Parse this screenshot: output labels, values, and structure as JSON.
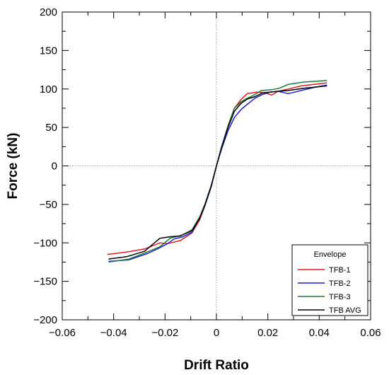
{
  "chart_data": {
    "type": "line",
    "xlabel": "Drift Ratio",
    "ylabel": "Force (kN)",
    "xlim": [
      -0.06,
      0.06
    ],
    "ylim": [
      -200,
      200
    ],
    "xticks": [
      -0.06,
      -0.04,
      -0.02,
      0,
      0.02,
      0.04,
      0.06
    ],
    "xtick_labels": [
      "−0.06",
      "−0.04",
      "−0.02",
      "0",
      "0.02",
      "0.04",
      "0.06"
    ],
    "yticks": [
      -200,
      -150,
      -100,
      -50,
      0,
      50,
      100,
      150,
      200
    ],
    "ytick_labels": [
      "−200",
      "−150",
      "−100",
      "−50",
      "0",
      "50",
      "100",
      "150",
      "200"
    ],
    "grid": "dotted zero lines",
    "legend": {
      "title": "Envelope",
      "position": "bottom-right"
    },
    "series": [
      {
        "name": "TFB-1",
        "color": "#e41a1c",
        "points": [
          [
            -0.0425,
            -115
          ],
          [
            -0.035,
            -112
          ],
          [
            -0.028,
            -108
          ],
          [
            -0.022,
            -100
          ],
          [
            -0.019,
            -101
          ],
          [
            -0.014,
            -97
          ],
          [
            -0.0095,
            -87
          ],
          [
            -0.0065,
            -70
          ],
          [
            -0.0045,
            -52
          ],
          [
            -0.002,
            -26
          ],
          [
            0,
            0
          ],
          [
            0.002,
            24
          ],
          [
            0.0045,
            52
          ],
          [
            0.007,
            75
          ],
          [
            0.0095,
            86
          ],
          [
            0.012,
            94
          ],
          [
            0.016,
            96
          ],
          [
            0.019,
            95
          ],
          [
            0.0215,
            92
          ],
          [
            0.024,
            97
          ],
          [
            0.028,
            100
          ],
          [
            0.033,
            104
          ],
          [
            0.038,
            106
          ],
          [
            0.043,
            108
          ]
        ]
      },
      {
        "name": "TFB-2",
        "color": "#1f1fd6",
        "points": [
          [
            -0.042,
            -124
          ],
          [
            -0.034,
            -122
          ],
          [
            -0.027,
            -114
          ],
          [
            -0.023,
            -108
          ],
          [
            -0.019,
            -101
          ],
          [
            -0.0165,
            -95
          ],
          [
            -0.013,
            -92
          ],
          [
            -0.0095,
            -86
          ],
          [
            -0.0065,
            -67
          ],
          [
            -0.0045,
            -52
          ],
          [
            -0.002,
            -27
          ],
          [
            0,
            0
          ],
          [
            0.002,
            22
          ],
          [
            0.0045,
            46
          ],
          [
            0.007,
            63
          ],
          [
            0.0095,
            73
          ],
          [
            0.012,
            80
          ],
          [
            0.015,
            88
          ],
          [
            0.018,
            93
          ],
          [
            0.021,
            96
          ],
          [
            0.024,
            97
          ],
          [
            0.028,
            94
          ],
          [
            0.033,
            98
          ],
          [
            0.038,
            102
          ],
          [
            0.043,
            105
          ]
        ]
      },
      {
        "name": "TFB-3",
        "color": "#1a7a3a",
        "points": [
          [
            -0.042,
            -125
          ],
          [
            -0.034,
            -121
          ],
          [
            -0.027,
            -112
          ],
          [
            -0.022,
            -105
          ],
          [
            -0.018,
            -94
          ],
          [
            -0.0135,
            -90
          ],
          [
            -0.0095,
            -83
          ],
          [
            -0.0065,
            -66
          ],
          [
            -0.0045,
            -50
          ],
          [
            -0.002,
            -25
          ],
          [
            0,
            0
          ],
          [
            0.002,
            25
          ],
          [
            0.0045,
            52
          ],
          [
            0.007,
            75
          ],
          [
            0.0095,
            83
          ],
          [
            0.012,
            88
          ],
          [
            0.014,
            91
          ],
          [
            0.0175,
            98
          ],
          [
            0.0215,
            99
          ],
          [
            0.0245,
            101
          ],
          [
            0.028,
            106
          ],
          [
            0.034,
            109
          ],
          [
            0.043,
            111
          ]
        ]
      },
      {
        "name": "TFB AVG",
        "color": "#000000",
        "points": [
          [
            -0.042,
            -121
          ],
          [
            -0.035,
            -118
          ],
          [
            -0.028,
            -111
          ],
          [
            -0.022,
            -94
          ],
          [
            -0.018,
            -92
          ],
          [
            -0.014,
            -91
          ],
          [
            -0.0095,
            -84
          ],
          [
            -0.0065,
            -68
          ],
          [
            -0.0045,
            -51
          ],
          [
            -0.002,
            -26
          ],
          [
            0,
            0
          ],
          [
            0.002,
            24
          ],
          [
            0.0045,
            50
          ],
          [
            0.007,
            71
          ],
          [
            0.0095,
            81
          ],
          [
            0.012,
            87
          ],
          [
            0.015,
            90
          ],
          [
            0.018,
            95
          ],
          [
            0.021,
            96
          ],
          [
            0.024,
            97
          ],
          [
            0.028,
            98
          ],
          [
            0.034,
            101
          ],
          [
            0.043,
            104
          ]
        ]
      }
    ]
  }
}
